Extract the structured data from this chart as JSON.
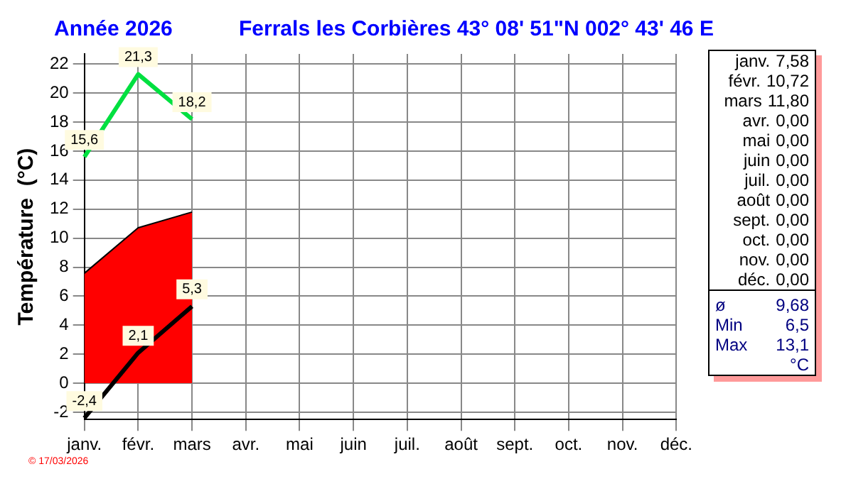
{
  "chart_data": {
    "type": "line",
    "title": "Année  2026",
    "subtitle": "Ferrals les Corbières 43° 08' 51\"N  002° 43' 46 E",
    "ylabel": "Température  (°C)",
    "categories": [
      "janv.",
      "févr.",
      "mars",
      "avr.",
      "mai",
      "juin",
      "juil.",
      "août",
      "sept.",
      "oct.",
      "nov.",
      "déc."
    ],
    "series": [
      {
        "type": "area",
        "color": "#ff0000",
        "values": [
          7.58,
          10.72,
          11.8,
          null,
          null,
          null,
          null,
          null,
          null,
          null,
          null,
          null
        ]
      },
      {
        "type": "line",
        "color": "#00e040",
        "values": [
          15.6,
          21.3,
          18.2,
          null,
          null,
          null,
          null,
          null,
          null,
          null,
          null,
          null
        ],
        "value_labels": [
          "15,6",
          "21,3",
          "18,2",
          null,
          null,
          null,
          null,
          null,
          null,
          null,
          null,
          null
        ]
      },
      {
        "type": "line",
        "color": "#000000",
        "values": [
          -2.4,
          2.1,
          5.3,
          null,
          null,
          null,
          null,
          null,
          null,
          null,
          null,
          null
        ],
        "value_labels": [
          "-2,4",
          "2,1",
          "5,3",
          null,
          null,
          null,
          null,
          null,
          null,
          null,
          null,
          null
        ]
      }
    ],
    "ylim": [
      -2.5,
      22.7
    ],
    "yticks": [
      -2,
      0,
      2,
      4,
      6,
      8,
      10,
      12,
      14,
      16,
      18,
      20,
      22
    ],
    "grid": true,
    "legend": false,
    "marker": "none",
    "line_style": "solid",
    "annotations": [
      "janv. 7,58",
      "févr. 10,72",
      "mars 11,80",
      "avr. 0,00",
      "mai 0,00",
      "juin 0,00",
      "juil. 0,00",
      "août 0,00",
      "sept. 0,00",
      "oct. 0,00",
      "nov. 0,00",
      "déc. 0,00",
      "ø 9,68",
      "Min 6,5",
      "Max 13,1",
      "°C",
      "© 17/03/2026"
    ]
  }
}
